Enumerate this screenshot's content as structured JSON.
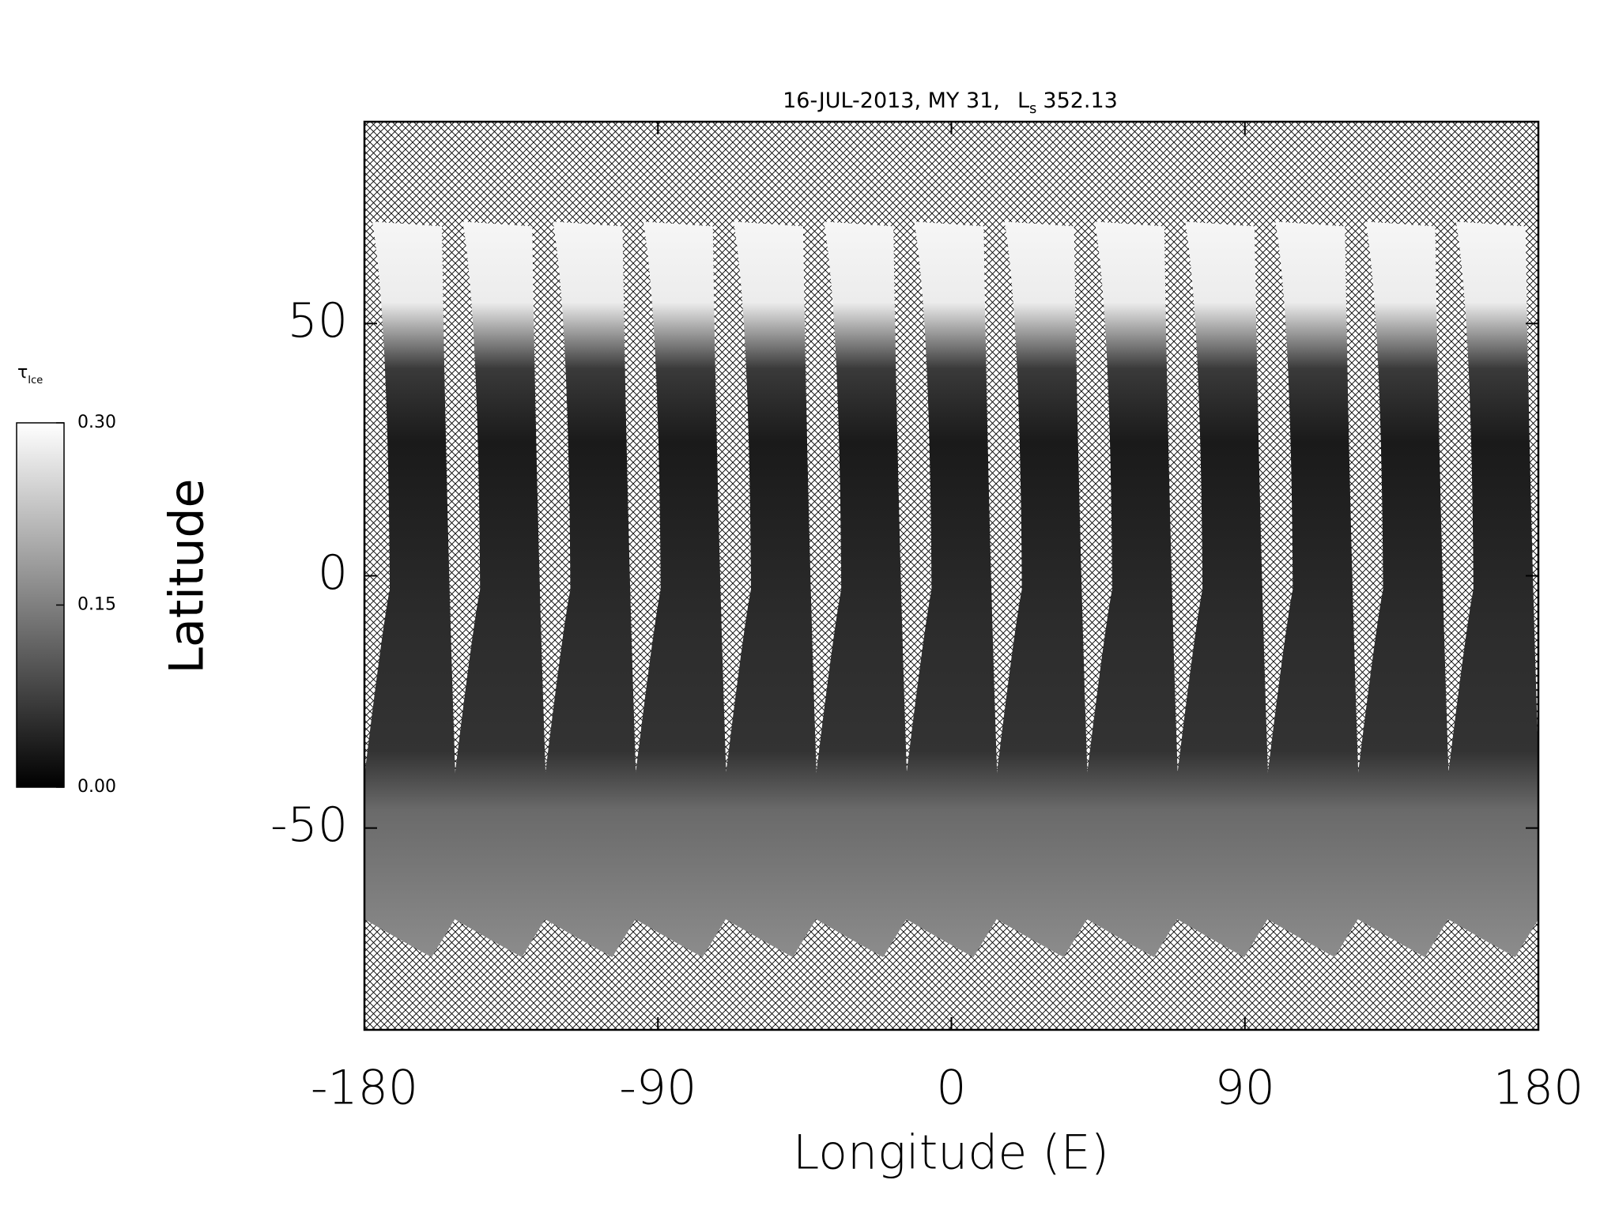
{
  "chart_data": {
    "type": "map",
    "title": "16-JUL-2013, MY 31,",
    "title_symbol": "L",
    "title_subscript": "s",
    "title_value": "352.13",
    "x_label": "Longitude (E)",
    "y_label": "Latitude",
    "xlim": [
      -180,
      180
    ],
    "xticks": [
      -180,
      -90,
      0,
      90,
      180
    ],
    "ylim": [
      -90,
      90
    ],
    "yticks": [
      -50,
      0,
      50
    ],
    "colorbar": {
      "label": "τ",
      "label_subscript": "Ice",
      "range": [
        0,
        0.3
      ],
      "ticks": [
        {
          "value": 0,
          "label": "0.00"
        },
        {
          "value": 0.15,
          "label": "0.15"
        },
        {
          "value": 0.3,
          "label": "0.30"
        }
      ]
    }
  }
}
